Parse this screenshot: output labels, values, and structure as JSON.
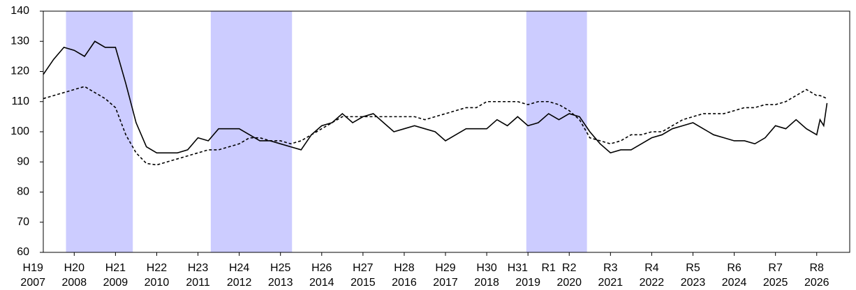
{
  "chart_data": {
    "type": "line",
    "x": [
      2007.25,
      2007.5,
      2007.75,
      2008,
      2008.25,
      2008.5,
      2008.75,
      2009,
      2009.25,
      2009.5,
      2009.75,
      2010,
      2010.25,
      2010.5,
      2010.75,
      2011,
      2011.25,
      2011.5,
      2011.75,
      2012,
      2012.25,
      2012.5,
      2012.75,
      2013,
      2013.25,
      2013.5,
      2013.75,
      2014,
      2014.25,
      2014.5,
      2014.75,
      2015,
      2015.25,
      2015.5,
      2015.75,
      2016,
      2016.25,
      2016.5,
      2016.75,
      2017,
      2017.25,
      2017.5,
      2017.75,
      2018,
      2018.25,
      2018.5,
      2018.75,
      2019,
      2019.25,
      2019.5,
      2019.75,
      2020,
      2020.25,
      2020.5,
      2020.75,
      2021,
      2021.25,
      2021.5,
      2021.75,
      2022,
      2022.25,
      2022.5,
      2022.75,
      2023,
      2023.25,
      2023.5,
      2023.75,
      2024,
      2024.25,
      2024.5,
      2024.75,
      2025,
      2025.25,
      2025.5,
      2025.75,
      2026,
      2026.08,
      2026.17,
      2026.25
    ],
    "series": [
      {
        "color": "#000000",
        "line_style": "solid",
        "values": [
          119,
          124,
          128,
          127,
          125,
          130,
          128,
          128,
          116,
          103,
          95,
          93,
          93,
          93,
          94,
          98,
          97,
          101,
          101,
          101,
          99,
          97,
          97,
          96,
          95,
          94,
          99,
          102,
          103,
          106,
          103,
          105,
          106,
          103,
          100,
          101,
          102,
          101,
          100,
          97,
          99,
          101,
          101,
          101,
          104,
          102,
          105,
          102,
          103,
          106,
          104,
          106,
          105,
          100,
          96,
          93,
          94,
          94,
          96,
          98,
          99,
          101,
          102,
          103,
          101,
          99,
          98,
          97,
          97,
          96,
          98,
          102,
          101,
          104,
          101,
          99,
          104,
          102,
          109.5
        ]
      },
      {
        "color": "#000000",
        "line_style": "dashed",
        "values": [
          111,
          112,
          113,
          114,
          115,
          113,
          111,
          108,
          99,
          93,
          89.5,
          89,
          90,
          91,
          92,
          93,
          94,
          94,
          95,
          96,
          98,
          98,
          97,
          97,
          96,
          97,
          99,
          101,
          103,
          105,
          105,
          105,
          105,
          105,
          105,
          105,
          105,
          104,
          105,
          106,
          107,
          108,
          108,
          110,
          110,
          110,
          110,
          109,
          110,
          110,
          109,
          107,
          104,
          98,
          97,
          96,
          97,
          99,
          99,
          100,
          100,
          102,
          104,
          105,
          106,
          106,
          106,
          107,
          108,
          108,
          109,
          109,
          110,
          112,
          114,
          112,
          112,
          111.5,
          111
        ]
      }
    ],
    "shaded_periods": [
      [
        2007.8,
        2009.42
      ],
      [
        2011.31,
        2013.28
      ],
      [
        2018.96,
        2020.43
      ]
    ],
    "shade_color": "#ccccff",
    "xlim": [
      2007.25,
      2026.8
    ],
    "xticks": [
      2007,
      2008,
      2009,
      2010,
      2011,
      2012,
      2013,
      2014,
      2015,
      2016,
      2017,
      2018,
      2019,
      2020,
      2021,
      2022,
      2023,
      2024,
      2025,
      2026
    ],
    "era_labels": [
      {
        "value": 2007,
        "label": "H19"
      },
      {
        "value": 2008,
        "label": "H20"
      },
      {
        "value": 2009,
        "label": "H21"
      },
      {
        "value": 2010,
        "label": "H22"
      },
      {
        "value": 2011,
        "label": "H23"
      },
      {
        "value": 2012,
        "label": "H24"
      },
      {
        "value": 2013,
        "label": "H25"
      },
      {
        "value": 2014,
        "label": "H26"
      },
      {
        "value": 2015,
        "label": "H27"
      },
      {
        "value": 2016,
        "label": "H28"
      },
      {
        "value": 2017,
        "label": "H29"
      },
      {
        "value": 2018,
        "label": "H30"
      },
      {
        "value": 2018.75,
        "label": "H31"
      },
      {
        "value": 2019.5,
        "label": "R1"
      },
      {
        "value": 2020,
        "label": "R2"
      },
      {
        "value": 2021,
        "label": "R3"
      },
      {
        "value": 2022,
        "label": "R4"
      },
      {
        "value": 2023,
        "label": "R5"
      },
      {
        "value": 2024,
        "label": "R6"
      },
      {
        "value": 2025,
        "label": "R7"
      },
      {
        "value": 2026,
        "label": "R8"
      }
    ],
    "ylim": [
      60,
      140
    ],
    "yticks": [
      60,
      70,
      80,
      90,
      100,
      110,
      120,
      130,
      140
    ],
    "grid": false
  }
}
